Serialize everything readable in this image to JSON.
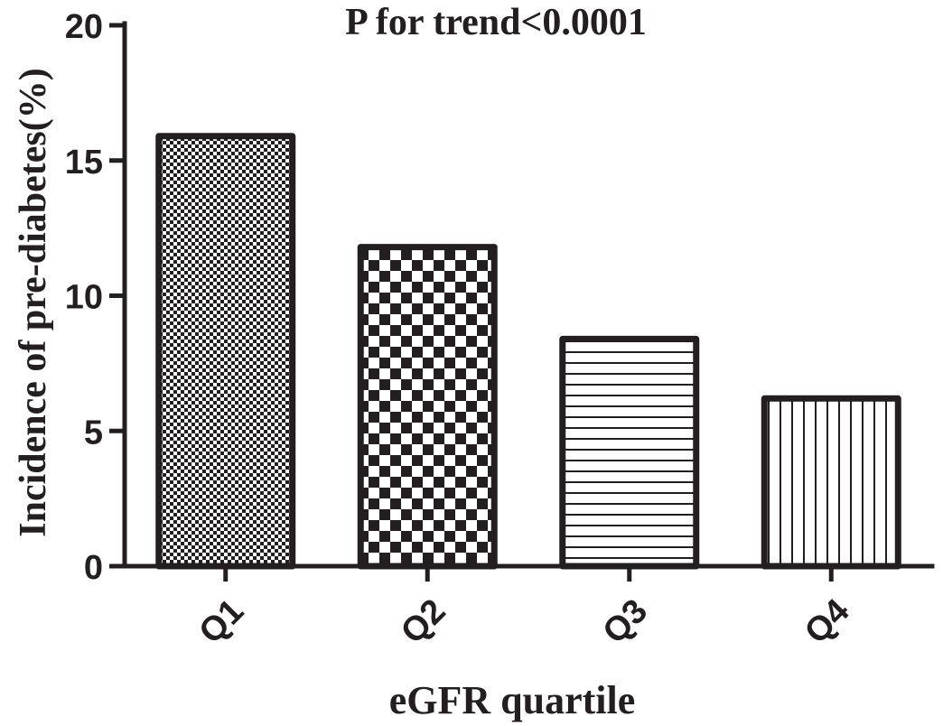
{
  "chart_data": {
    "type": "bar",
    "title": "P for trend<0.0001",
    "xlabel": "eGFR quartile",
    "ylabel": "Incidence of pre-diabetes(%)",
    "categories": [
      "Q1",
      "Q2",
      "Q3",
      "Q4"
    ],
    "values": [
      15.9,
      11.8,
      8.4,
      6.2
    ],
    "patterns": [
      "fine-checker",
      "coarse-checker",
      "horizontal-lines",
      "vertical-lines"
    ],
    "ylim": [
      0,
      20
    ],
    "yticks": [
      "0",
      "5",
      "10",
      "15",
      "20"
    ],
    "grid": false,
    "legend": "none",
    "colors": {
      "ink": "#231f20",
      "background": "#ffffff"
    }
  }
}
